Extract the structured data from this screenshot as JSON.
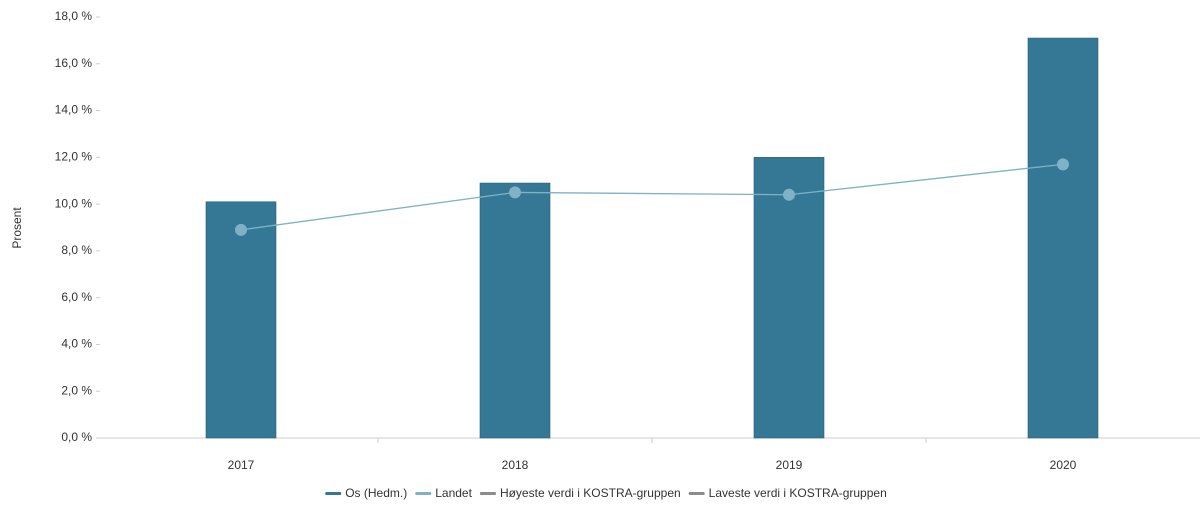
{
  "chart_data": {
    "type": "bar",
    "y_label": "Prosent",
    "categories": [
      "2017",
      "2018",
      "2019",
      "2020"
    ],
    "series": [
      {
        "name": "Os (Hedm.)",
        "type": "bar",
        "color": "#347896",
        "values": [
          10.1,
          10.9,
          12.0,
          17.1
        ]
      },
      {
        "name": "Landet",
        "type": "line",
        "color": "#7fb2c7",
        "values": [
          8.9,
          10.5,
          10.4,
          11.7
        ]
      },
      {
        "name": "Høyeste verdi i KOSTRA-gruppen",
        "type": "line",
        "color": "#8c8c8c",
        "values": [
          null,
          null,
          null,
          null
        ]
      },
      {
        "name": "Laveste verdi i KOSTRA-gruppen",
        "type": "line",
        "color": "#8c8c8c",
        "values": [
          null,
          null,
          null,
          null
        ]
      }
    ],
    "ylim": [
      0,
      18
    ],
    "yticks": [
      {
        "value": 0,
        "label": "0,0 %"
      },
      {
        "value": 2,
        "label": "2,0 %"
      },
      {
        "value": 4,
        "label": "4,0 %"
      },
      {
        "value": 6,
        "label": "6,0 %"
      },
      {
        "value": 8,
        "label": "8,0 %"
      },
      {
        "value": 10,
        "label": "10,0 %"
      },
      {
        "value": 12,
        "label": "12,0 %"
      },
      {
        "value": 14,
        "label": "14,0 %"
      },
      {
        "value": 16,
        "label": "16,0 %"
      },
      {
        "value": 18,
        "label": "18,0 %"
      }
    ],
    "grid": false,
    "legend": "bottom"
  }
}
